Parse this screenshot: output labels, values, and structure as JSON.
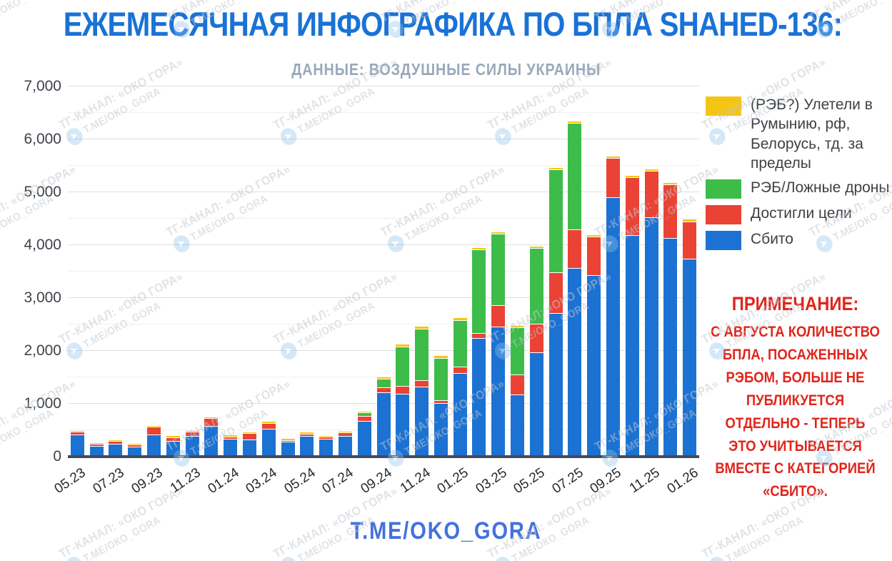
{
  "title": "ЕЖЕМЕСЯЧНАЯ ИНФОГРАФИКА ПО БПЛА SHAHED-136:",
  "subtitle": "ДАННЫЕ: ВОЗДУШНЫЕ СИЛЫ УКРАИНЫ",
  "footer": "T.ME/OKO_GORA",
  "colors": {
    "title_blue": "#1a72d6",
    "subtitle_gray": "#9aa8ba",
    "footer_blue": "#4372de",
    "note_red": "#e1251b",
    "axis_line": "#424c58",
    "shot_down_blue": "#1c72d2",
    "reached_target_red": "#ea4335",
    "ew_decoy_green": "#3dbc4a",
    "flew_out_yellow": "#f5c513"
  },
  "note": {
    "title": "ПРИМЕЧАНИЕ:",
    "body": "С АВГУСТА КОЛИЧЕСТВО БПЛА, ПОСАЖЕННЫХ РЭБОМ, БОЛЬШЕ НЕ ПУБЛИКУЕТСЯ ОТДЕЛЬНО - ТЕПЕРЬ ЭТО УЧИТЫВАЕТСЯ ВМЕСТЕ С КАТЕГОРИЕЙ «СБИТО»."
  },
  "watermark": {
    "line1": "ТГ-КАНАЛ: «ОКО ГОРА»",
    "line2": "Т.МЕ/ОКО_GORA",
    "icon": "telegram-plane-icon"
  },
  "legend": [
    {
      "label": "(РЭБ?) Улетели в Румынию, рф, Белорусь, тд. за пределы",
      "color": "#f5c513"
    },
    {
      "label": "РЭБ/Ложные дроны",
      "color": "#3dbc4a"
    },
    {
      "label": "Достигли цели",
      "color": "#ea4335"
    },
    {
      "label": "Сбито",
      "color": "#1c72d2"
    }
  ],
  "chart_data": {
    "type": "bar",
    "subtype": "stacked",
    "title": "ЕЖЕМЕСЯЧНАЯ ИНФОГРАФИКА ПО БПЛА SHAHED-136:",
    "xlabel": "",
    "ylabel": "",
    "ylim": [
      0,
      7000
    ],
    "y_ticks": [
      0,
      1000,
      2000,
      3000,
      4000,
      5000,
      6000,
      7000
    ],
    "minor_grid_step": 500,
    "grid": "on",
    "legend_position": "right",
    "categories": [
      "05.23",
      "06.23",
      "07.23",
      "08.23",
      "09.23",
      "10.23",
      "11.23",
      "12.23",
      "01.24",
      "02.24",
      "03.24",
      "04.24",
      "05.24",
      "06.24",
      "07.24",
      "08.24",
      "09.24",
      "10.24",
      "11.24",
      "12.24",
      "01.25",
      "02.25",
      "03.25",
      "04.25",
      "05.25",
      "06.25",
      "07.25",
      "08.25",
      "09.25",
      "10.25",
      "11.25",
      "12.25",
      "01.26"
    ],
    "x_tick_labels": [
      "05.23",
      "07.23",
      "09.23",
      "11.23",
      "01.24",
      "03.24",
      "05.24",
      "07.24",
      "09.24",
      "11.24",
      "01.25",
      "03.25",
      "05.25",
      "07.25",
      "09.25",
      "11.25",
      "01.26"
    ],
    "stack_order_bottom_to_top": [
      "Сбито",
      "Достигли цели",
      "РЭБ/Ложные дроны",
      "(РЭБ?) Улетели в Румынию, рф, Белорусь, тд. за пределы"
    ],
    "series": [
      {
        "name": "Сбито",
        "color": "#1c72d2",
        "values": [
          410,
          185,
          230,
          170,
          405,
          285,
          385,
          565,
          320,
          305,
          520,
          265,
          375,
          320,
          385,
          665,
          1200,
          1170,
          1315,
          995,
          1570,
          2225,
          2445,
          1160,
          1965,
          2700,
          3550,
          3420,
          4895,
          4180,
          4520,
          4120,
          3730
        ]
      },
      {
        "name": "Достигли цели",
        "color": "#ea4335",
        "values": [
          30,
          25,
          40,
          30,
          140,
          55,
          60,
          135,
          30,
          115,
          90,
          25,
          35,
          25,
          45,
          85,
          90,
          135,
          105,
          45,
          105,
          90,
          390,
          370,
          515,
          760,
          715,
          715,
          730,
          1075,
          855,
          1000,
          695
        ]
      },
      {
        "name": "РЭБ/Ложные дроны",
        "color": "#3dbc4a",
        "values": [
          0,
          0,
          0,
          0,
          0,
          0,
          0,
          0,
          0,
          0,
          0,
          0,
          0,
          0,
          0,
          45,
          145,
          740,
          965,
          790,
          870,
          1565,
          1340,
          870,
          1420,
          1935,
          2010,
          0,
          0,
          0,
          0,
          0,
          0
        ]
      },
      {
        "name": "(РЭБ?) Улетели в Румынию, рф, Белорусь, тд. за пределы",
        "color": "#f5c513",
        "values": [
          25,
          20,
          20,
          20,
          15,
          20,
          20,
          20,
          25,
          15,
          20,
          20,
          20,
          20,
          20,
          20,
          20,
          30,
          35,
          30,
          30,
          30,
          25,
          30,
          30,
          30,
          25,
          30,
          25,
          25,
          25,
          25,
          30
        ]
      }
    ]
  }
}
